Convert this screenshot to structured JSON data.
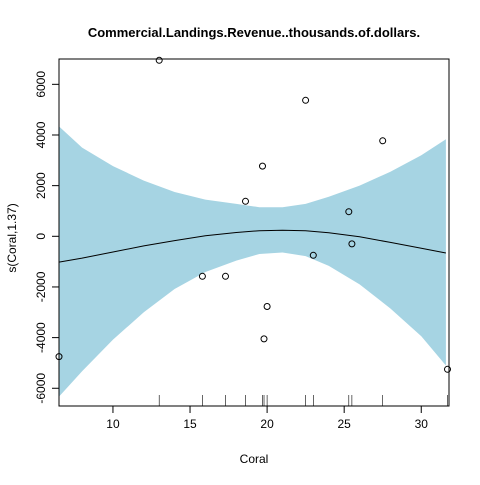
{
  "chart_data": {
    "type": "line",
    "title": "Commercial.Landings.Revenue..thousands.of.dollars.",
    "xlabel": "Coral",
    "ylabel": "s(Coral,1.37)",
    "xlim": [
      6.5,
      31.8
    ],
    "ylim": [
      -6700,
      7000
    ],
    "x_ticks": [
      10,
      15,
      20,
      25,
      30
    ],
    "y_ticks": [
      -6000,
      -4000,
      -2000,
      0,
      2000,
      4000,
      6000
    ],
    "grid": false,
    "legend": "none",
    "band_color": "#a6d4e3",
    "line_color": "#000000",
    "smooth": {
      "x": [
        6.5,
        8.0,
        10.0,
        12.0,
        14.0,
        16.0,
        18.0,
        19.5,
        21.0,
        22.5,
        24.0,
        26.0,
        28.0,
        30.0,
        31.6
      ],
      "fit": [
        -1020,
        -860,
        -620,
        -380,
        -170,
        20,
        150,
        220,
        240,
        220,
        140,
        -20,
        -240,
        -470,
        -660
      ],
      "upper": [
        4340,
        3500,
        2770,
        2200,
        1750,
        1450,
        1280,
        1150,
        1150,
        1280,
        1560,
        2000,
        2550,
        3200,
        3830
      ],
      "lower": [
        -6330,
        -5330,
        -4080,
        -3000,
        -2080,
        -1410,
        -960,
        -700,
        -640,
        -780,
        -1170,
        -1900,
        -2850,
        -3950,
        -5100
      ]
    },
    "points": {
      "x": [
        6.5,
        13.0,
        15.8,
        17.3,
        18.6,
        19.7,
        19.8,
        20.0,
        22.5,
        23.0,
        25.3,
        25.5,
        27.5,
        31.7
      ],
      "y": [
        -4750,
        6950,
        -1580,
        -1580,
        1380,
        2770,
        -4050,
        -2770,
        5370,
        -750,
        970,
        -300,
        3770,
        -5250
      ]
    },
    "rug": [
      6.5,
      13.0,
      15.8,
      17.3,
      18.6,
      19.7,
      19.8,
      20.0,
      22.5,
      23.0,
      25.3,
      25.5,
      27.5,
      31.7
    ]
  }
}
